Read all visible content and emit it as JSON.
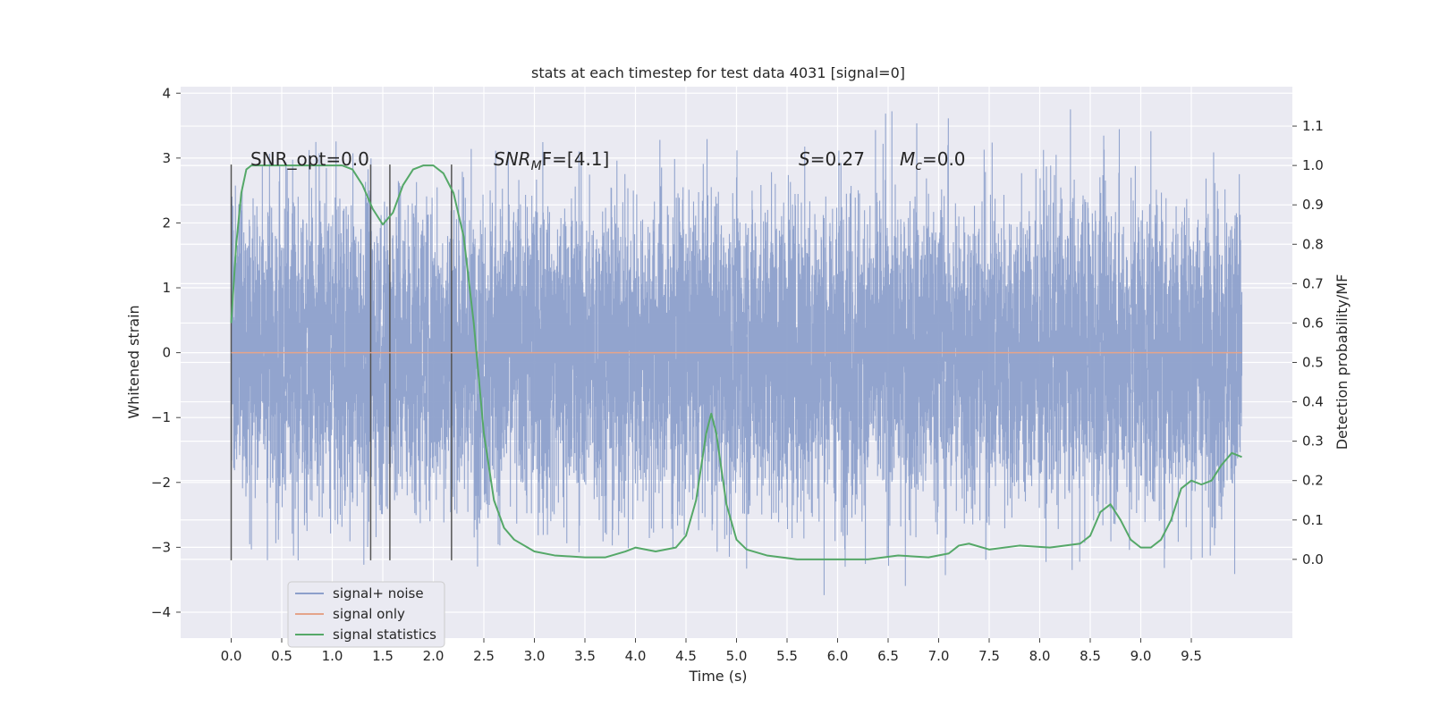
{
  "chart_data": {
    "type": "line",
    "title": "stats at each timestep for test data 4031 [signal=0]",
    "xlabel": "Time (s)",
    "ylabel": "Whitened strain",
    "y2label": "Detection probability/MF",
    "xlim": [
      -0.5,
      10.5
    ],
    "ylim": [
      -4.4,
      4.1
    ],
    "y2lim": [
      -0.2,
      1.2
    ],
    "x_ticks": [
      "0.0",
      "0.5",
      "1.0",
      "1.5",
      "2.0",
      "2.5",
      "3.0",
      "3.5",
      "4.0",
      "4.5",
      "5.0",
      "5.5",
      "6.0",
      "6.5",
      "7.0",
      "7.5",
      "8.0",
      "8.5",
      "9.0",
      "9.5"
    ],
    "y_ticks": [
      "4",
      "3",
      "2",
      "1",
      "0",
      "−1",
      "−2",
      "−3",
      "−4"
    ],
    "y2_ticks": [
      "1.1",
      "1.0",
      "0.9",
      "0.8",
      "0.7",
      "0.6",
      "0.5",
      "0.4",
      "0.3",
      "0.2",
      "0.1",
      "0.0"
    ],
    "grid": true,
    "legend_position": "lower-left",
    "annotations": {
      "snr_opt": "SNR_opt=0.0",
      "snr_mf_sym": "SNR",
      "snr_mf_sub": "M",
      "snr_mf_rest": "F=[4.1]",
      "s_sym": "S",
      "s_rest": "=0.27",
      "mc_sym": "M",
      "mc_sub": "c",
      "mc_rest": "=0.0"
    },
    "vertical_markers": [
      0.0,
      1.38,
      1.57,
      2.18
    ],
    "series": [
      {
        "name": "signal+ noise",
        "color": "#8da0cb",
        "description_range": [
          -4.0,
          3.75
        ],
        "x_range": [
          0.0,
          10.0
        ]
      },
      {
        "name": "signal only",
        "color": "#e5a48a",
        "x": [
          0.0,
          10.0
        ],
        "y": [
          0.0,
          0.0
        ]
      },
      {
        "name": "signal statistics",
        "color": "#55a868",
        "axis": "right",
        "x": [
          0.0,
          0.05,
          0.1,
          0.15,
          0.2,
          0.3,
          0.5,
          0.8,
          1.0,
          1.1,
          1.2,
          1.3,
          1.4,
          1.5,
          1.6,
          1.7,
          1.8,
          1.9,
          2.0,
          2.1,
          2.2,
          2.3,
          2.4,
          2.5,
          2.6,
          2.7,
          2.8,
          3.0,
          3.2,
          3.5,
          3.7,
          3.9,
          4.0,
          4.2,
          4.4,
          4.5,
          4.6,
          4.7,
          4.75,
          4.8,
          4.9,
          5.0,
          5.1,
          5.3,
          5.6,
          6.0,
          6.3,
          6.6,
          6.9,
          7.1,
          7.2,
          7.3,
          7.5,
          7.8,
          8.1,
          8.4,
          8.5,
          8.6,
          8.7,
          8.8,
          8.9,
          9.0,
          9.1,
          9.2,
          9.3,
          9.4,
          9.5,
          9.6,
          9.7,
          9.8,
          9.9,
          10.0
        ],
        "y": [
          0.6,
          0.8,
          0.93,
          0.99,
          1.0,
          1.0,
          1.0,
          1.0,
          1.0,
          1.0,
          0.99,
          0.95,
          0.89,
          0.85,
          0.88,
          0.95,
          0.99,
          1.0,
          1.0,
          0.98,
          0.93,
          0.82,
          0.6,
          0.32,
          0.15,
          0.08,
          0.05,
          0.02,
          0.01,
          0.005,
          0.005,
          0.02,
          0.03,
          0.02,
          0.03,
          0.06,
          0.15,
          0.32,
          0.37,
          0.32,
          0.14,
          0.05,
          0.025,
          0.01,
          0.0,
          0.0,
          0.0,
          0.01,
          0.005,
          0.015,
          0.035,
          0.04,
          0.025,
          0.035,
          0.03,
          0.04,
          0.06,
          0.12,
          0.14,
          0.1,
          0.05,
          0.03,
          0.03,
          0.05,
          0.1,
          0.18,
          0.2,
          0.19,
          0.2,
          0.24,
          0.27,
          0.26
        ]
      }
    ]
  }
}
